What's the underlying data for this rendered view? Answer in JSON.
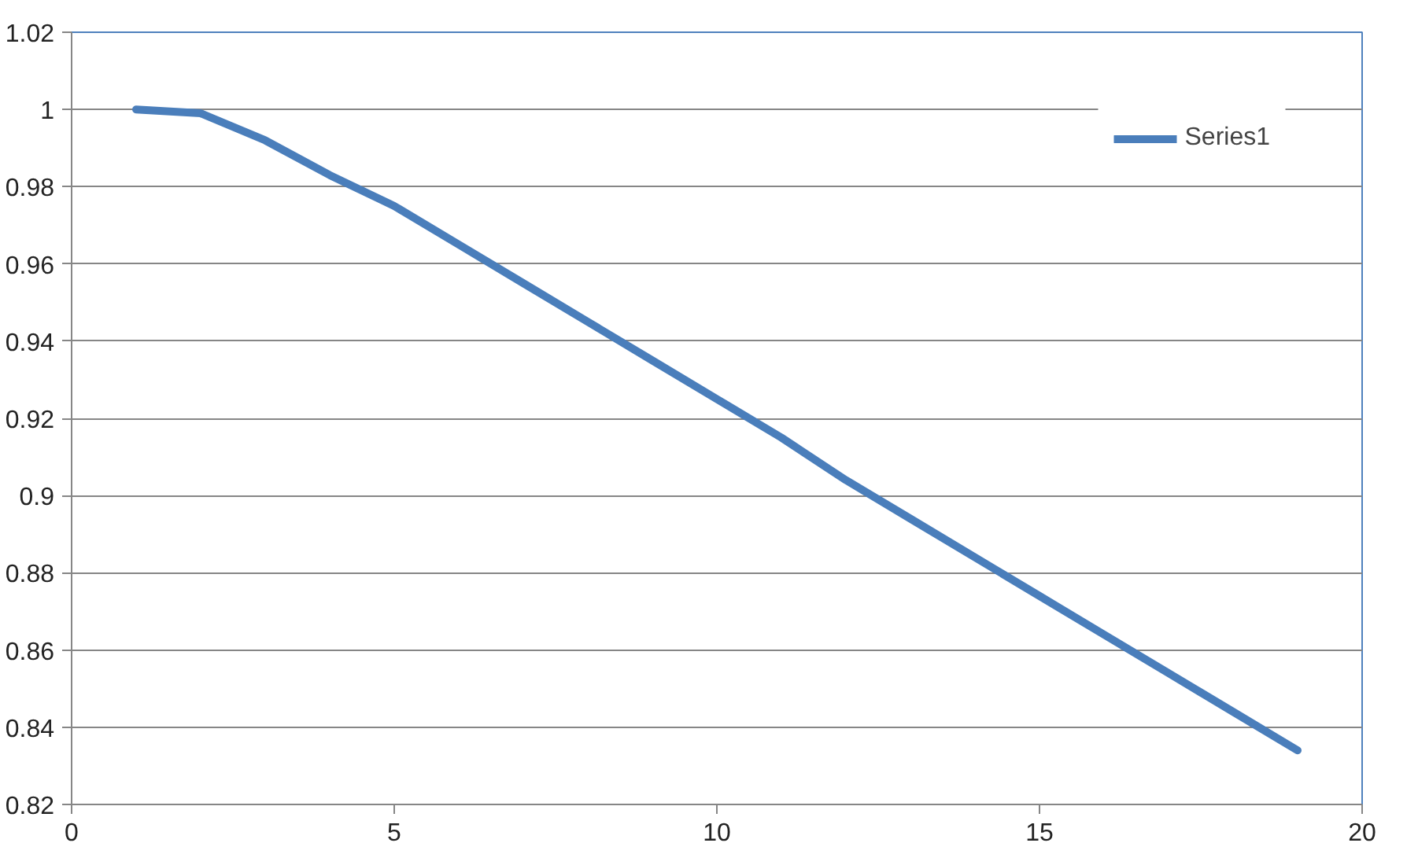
{
  "chart_data": {
    "type": "line",
    "x": [
      1,
      2,
      3,
      4,
      5,
      6,
      7,
      8,
      9,
      10,
      11,
      12,
      13,
      14,
      15,
      16,
      17,
      18,
      19
    ],
    "series": [
      {
        "name": "Series1",
        "color": "#4a7ebb",
        "values": [
          1.0,
          0.999,
          0.992,
          0.983,
          0.975,
          0.965,
          0.955,
          0.945,
          0.935,
          0.925,
          0.915,
          0.904,
          0.894,
          0.884,
          0.874,
          0.864,
          0.854,
          0.844,
          0.834
        ]
      }
    ],
    "xlim": [
      0,
      20
    ],
    "xticks": [
      0,
      5,
      10,
      15,
      20
    ],
    "ylim": [
      0.82,
      1.02
    ],
    "yticks": [
      0.82,
      0.84,
      0.86,
      0.88,
      0.9,
      0.92,
      0.94,
      0.96,
      0.98,
      1,
      1.02
    ],
    "grid": "y",
    "legend": "top right",
    "marker": "none",
    "line_style": "solid"
  }
}
